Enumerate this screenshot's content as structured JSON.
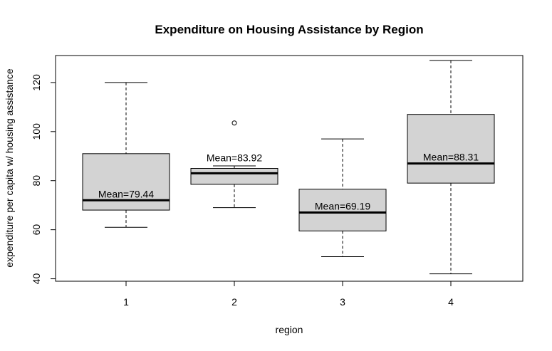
{
  "chart_data": {
    "type": "boxplot",
    "title": "Expenditure on Housing Assistance by Region",
    "xlabel": "region",
    "ylabel": "expenditure per capita w/ housing assistance",
    "ylim": [
      39,
      131
    ],
    "yticks": [
      40,
      60,
      80,
      100,
      120
    ],
    "categories": [
      "1",
      "2",
      "3",
      "4"
    ],
    "boxes": [
      {
        "category": "1",
        "whisker_low": 61,
        "q1": 68,
        "median": 72,
        "q3": 91,
        "whisker_high": 120,
        "outliers": [],
        "mean_label": "Mean=79.44"
      },
      {
        "category": "2",
        "whisker_low": 69,
        "q1": 78.5,
        "median": 83,
        "q3": 85,
        "whisker_high": 86,
        "outliers": [
          103.5
        ],
        "mean_label": "Mean=83.92"
      },
      {
        "category": "3",
        "whisker_low": 49,
        "q1": 59.5,
        "median": 67,
        "q3": 76.5,
        "whisker_high": 97,
        "outliers": [],
        "mean_label": "Mean=69.19"
      },
      {
        "category": "4",
        "whisker_low": 42,
        "q1": 79,
        "median": 87,
        "q3": 107,
        "whisker_high": 129,
        "outliers": [],
        "mean_label": "Mean=88.31"
      }
    ],
    "box_fill": "#d3d3d3",
    "grid": false
  }
}
